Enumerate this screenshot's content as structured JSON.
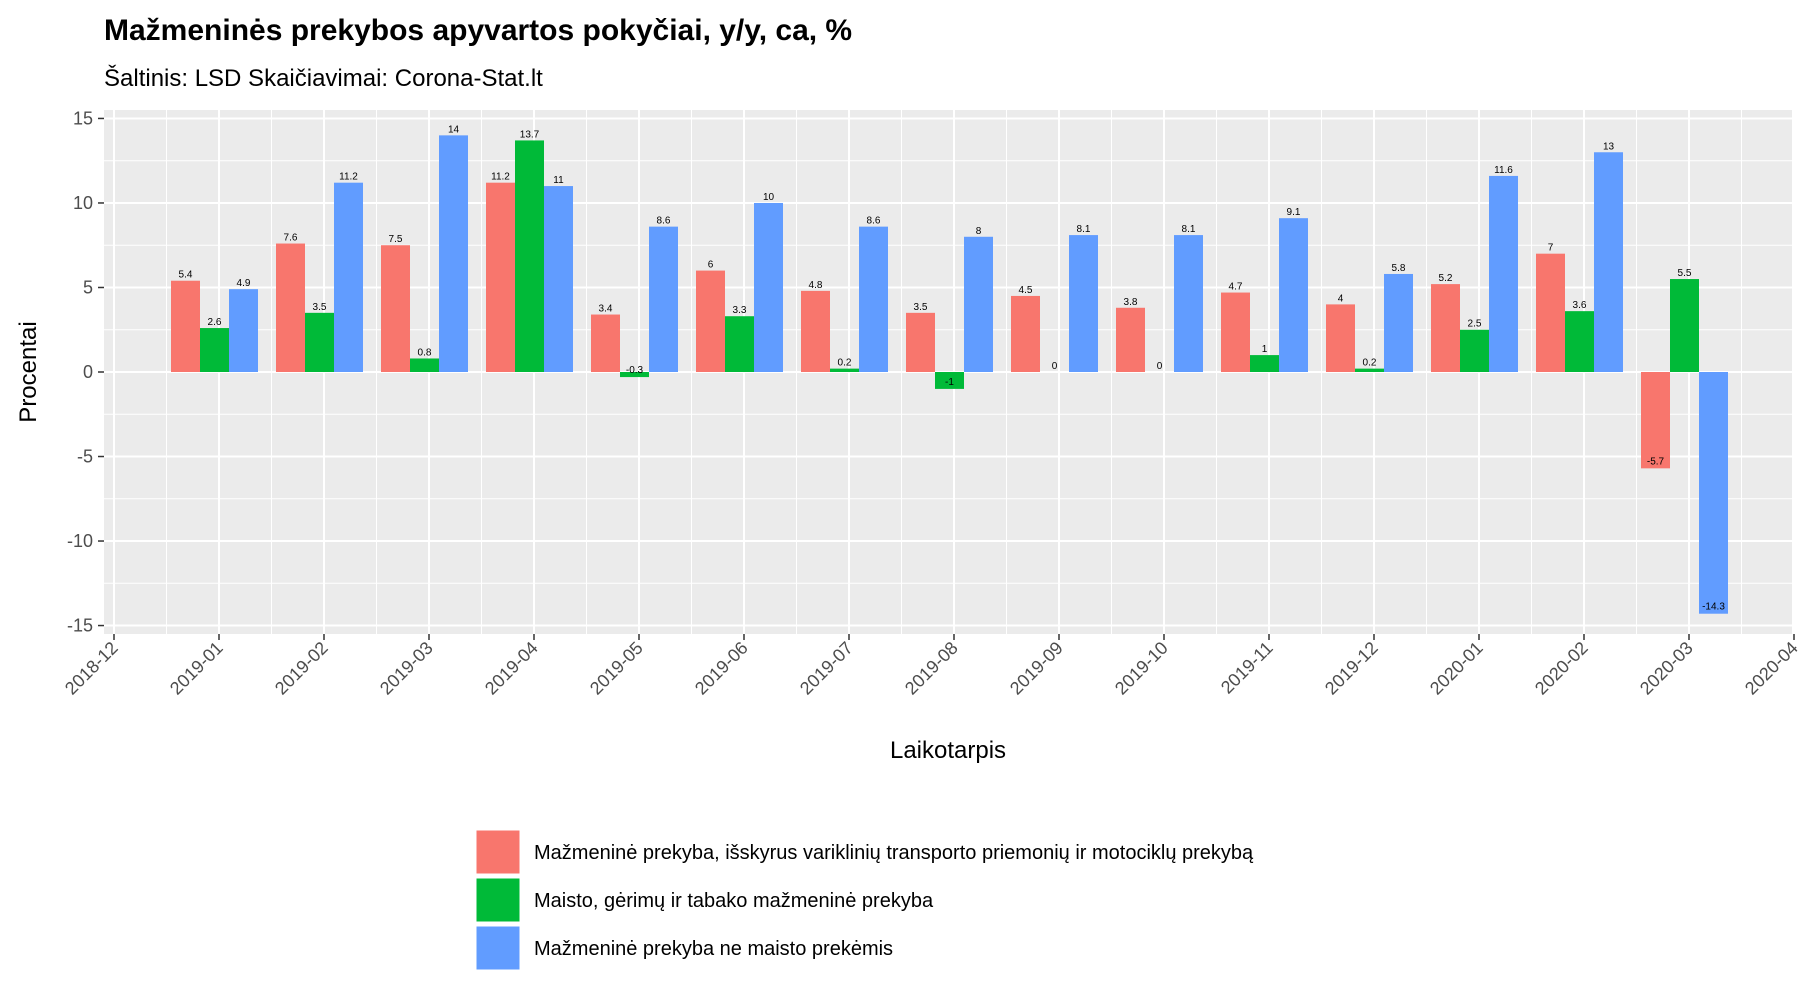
{
  "chart_data": {
    "type": "bar",
    "title": "Mažmeninės prekybos apyvartos pokyčiai, y/y, ca, %",
    "subtitle": "Šaltinis: LSD Skaičiavimai: Corona-Stat.lt",
    "xlabel": "Laikotarpis",
    "ylabel": "Procentai",
    "ylim": [
      -15.5,
      15.5
    ],
    "y_ticks": [
      15,
      10,
      5,
      0,
      -5,
      -10,
      -15
    ],
    "y_tick_labels": [
      "15",
      "10",
      "5",
      "0",
      "-5",
      "-10",
      "-15"
    ],
    "x_ticks": [
      "2018-12",
      "2019-01",
      "2019-02",
      "2019-03",
      "2019-04",
      "2019-05",
      "2019-06",
      "2019-07",
      "2019-08",
      "2019-09",
      "2019-10",
      "2019-11",
      "2019-12",
      "2020-01",
      "2020-02",
      "2020-03",
      "2020-04"
    ],
    "categories": [
      "2019-01",
      "2019-02",
      "2019-03",
      "2019-04",
      "2019-05",
      "2019-06",
      "2019-07",
      "2019-08",
      "2019-09",
      "2019-10",
      "2019-11",
      "2019-12",
      "2020-01",
      "2020-02",
      "2020-03"
    ],
    "series": [
      {
        "name": "Mažmeninė prekyba, išskyrus variklinių transporto priemonių ir motociklų prekybą",
        "color": "#F8766D",
        "values": [
          5.4,
          7.6,
          7.5,
          11.2,
          3.4,
          6,
          4.8,
          3.5,
          4.5,
          3.8,
          4.7,
          4,
          5.2,
          7,
          -5.7
        ]
      },
      {
        "name": "Maisto, gėrimų ir tabako mažmeninė prekyba",
        "color": "#00BA38",
        "values": [
          2.6,
          3.5,
          0.8,
          13.7,
          -0.3,
          3.3,
          0.2,
          -1,
          0,
          0,
          1,
          0.2,
          2.5,
          3.6,
          5.5
        ]
      },
      {
        "name": "Mažmeninė prekyba ne maisto prekėmis",
        "color": "#619CFF",
        "values": [
          4.9,
          11.2,
          14,
          11,
          8.6,
          10,
          8.6,
          8,
          8.1,
          8.1,
          9.1,
          5.8,
          11.6,
          13,
          -14.3
        ]
      }
    ],
    "legend_position": "bottom",
    "grid": true,
    "panel_background": "#EBEBEB"
  }
}
